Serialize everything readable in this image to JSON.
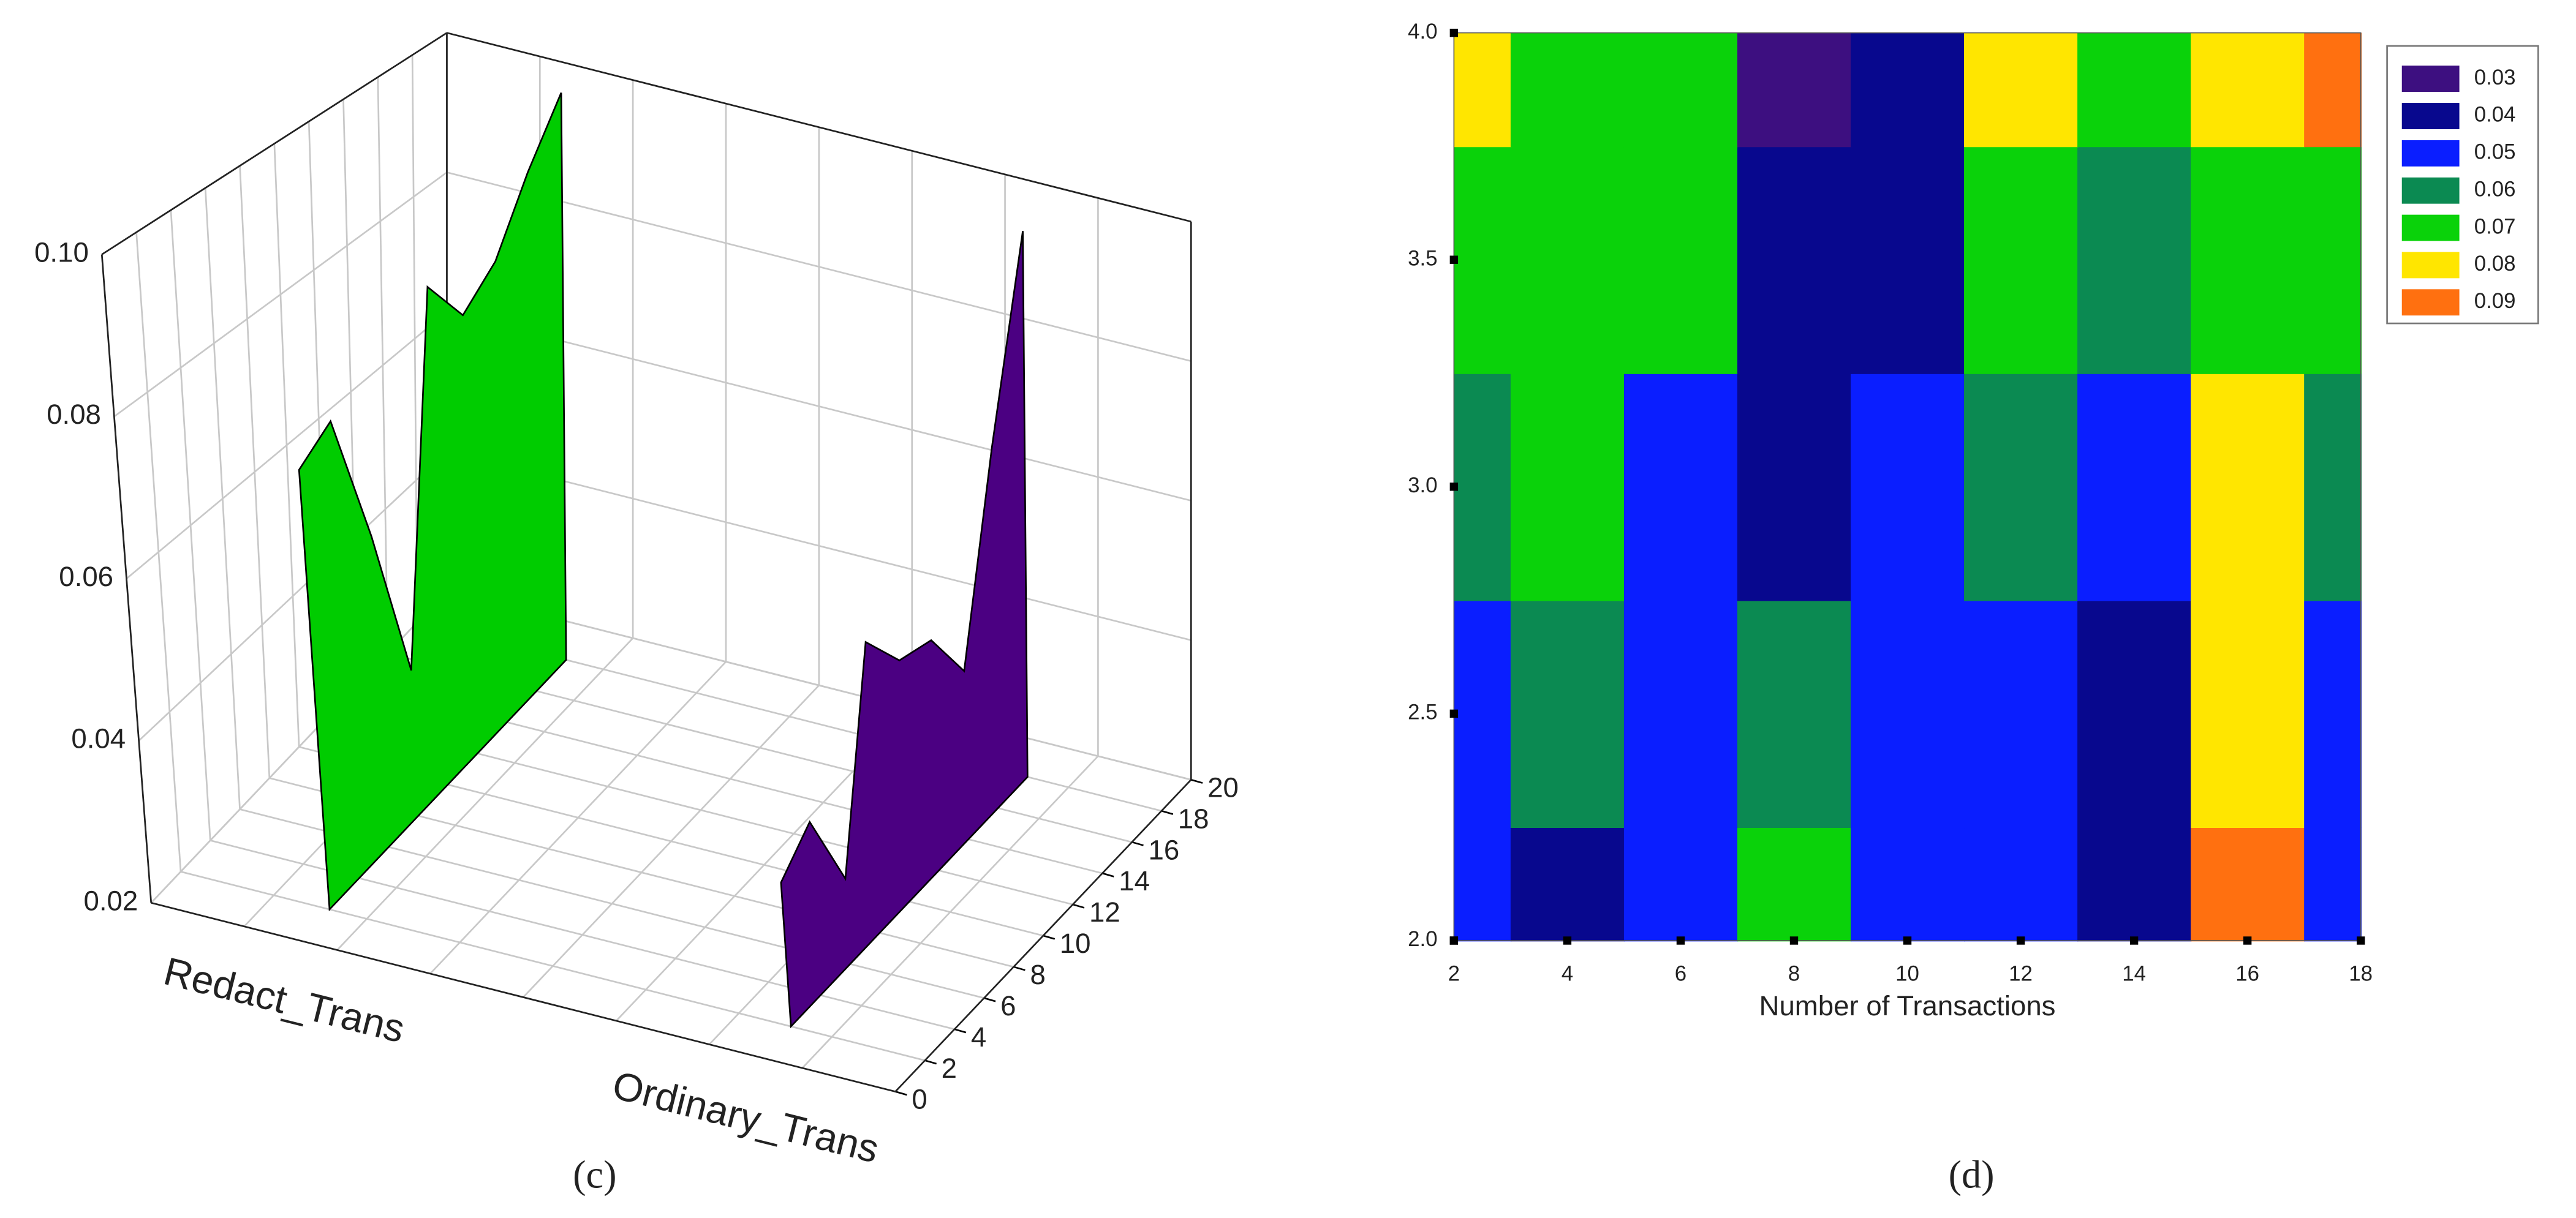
{
  "chart_data": [
    {
      "type": "ribbon3d",
      "caption": "(c)",
      "categories": [
        "Redact_Trans",
        "Ordinary_Trans"
      ],
      "x": [
        2,
        4,
        6,
        8,
        10,
        12,
        14,
        16,
        18
      ],
      "series": [
        {
          "color": "#00cc00",
          "values": [
            0.075,
            0.078,
            0.06,
            0.039,
            0.086,
            0.079,
            0.083,
            0.092,
            0.1
          ]
        },
        {
          "color": "#4b0082",
          "values": [
            0.038,
            0.042,
            0.031,
            0.058,
            0.052,
            0.051,
            0.043,
            0.07,
            0.097
          ]
        }
      ],
      "xlim": [
        0,
        20
      ],
      "xticks": [
        0,
        2,
        4,
        6,
        8,
        10,
        12,
        14,
        16,
        18,
        20
      ],
      "zlim": [
        0.02,
        0.1
      ],
      "zticks": [
        0.02,
        0.04,
        0.06,
        0.08,
        {
          "value": 0.1,
          "label": "0.10"
        }
      ],
      "grid": true
    },
    {
      "type": "contour",
      "caption": "(d)",
      "xlabel": "Number of Transactions",
      "x": [
        2,
        4,
        6,
        8,
        10,
        12,
        14,
        16,
        18
      ],
      "y": [
        2,
        2.5,
        3,
        3.5,
        4
      ],
      "z": [
        [
          0.05,
          0.045,
          0.05,
          0.07,
          0.05,
          0.05,
          0.04,
          0.09,
          0.05
        ],
        [
          0.055,
          0.06,
          0.05,
          0.06,
          0.05,
          0.055,
          0.045,
          0.085,
          0.05
        ],
        [
          0.065,
          0.07,
          0.055,
          0.045,
          0.05,
          0.065,
          0.05,
          0.08,
          0.06
        ],
        [
          0.07,
          0.07,
          0.07,
          0.04,
          0.045,
          0.075,
          0.06,
          0.075,
          0.075
        ],
        [
          0.08,
          0.075,
          0.07,
          0.035,
          0.045,
          0.08,
          0.07,
          0.08,
          0.09
        ]
      ],
      "xlim": [
        2,
        18
      ],
      "xticks": [
        2,
        4,
        6,
        8,
        10,
        12,
        14,
        16,
        18
      ],
      "ylim": [
        2,
        4
      ],
      "yticks": [
        {
          "value": 2,
          "label": "2.0"
        },
        2.5,
        {
          "value": 3,
          "label": "3.0"
        },
        3.5,
        {
          "value": 4,
          "label": "4.0"
        }
      ],
      "levels": [
        0.03,
        0.04,
        0.05,
        0.06,
        0.07,
        0.08,
        0.09
      ],
      "colors": [
        "#3d0f80",
        "#08088e",
        "#0a1eff",
        "#0b8a52",
        "#0ad20a",
        "#ffe600",
        "#ff7010"
      ],
      "legend": "upper right"
    }
  ]
}
